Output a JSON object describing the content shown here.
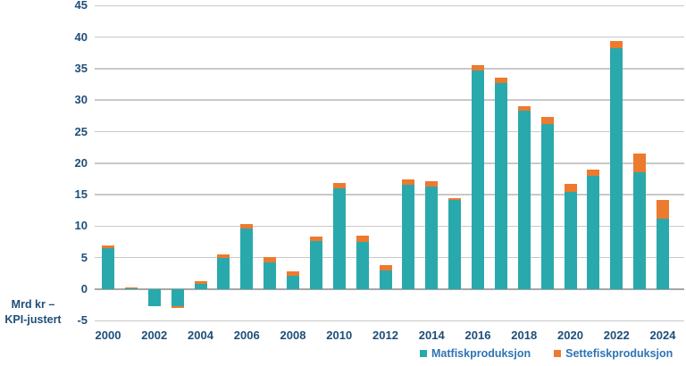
{
  "y_axis": {
    "title_line1": "Mrd kr –",
    "title_line2": "KPI-justert",
    "ticks": [
      45,
      40,
      35,
      30,
      25,
      20,
      15,
      10,
      5,
      0,
      -5
    ]
  },
  "x_axis": {
    "tick_labels": [
      "2000",
      "2002",
      "2004",
      "2006",
      "2008",
      "2010",
      "2012",
      "2014",
      "2016",
      "2018",
      "2020",
      "2022",
      "2024"
    ]
  },
  "legend": {
    "items": [
      {
        "label": "Matfiskproduksjon",
        "color": "#29A9AC"
      },
      {
        "label": "Settefiskproduksjon",
        "color": "#EC7A2F"
      }
    ]
  },
  "colors": {
    "teal": "#29A9AC",
    "orange": "#EC7A2F",
    "axis_text": "#1F4E79",
    "legend_text": "#2E74B5",
    "gridline": "#C9C9C9",
    "zero_line": "#A6A6A6",
    "background": "#FFFFFF"
  },
  "chart_data": {
    "type": "bar",
    "stacked": true,
    "title": "",
    "xlabel": "",
    "ylabel": "Mrd kr – KPI-justert",
    "ylim": [
      -5,
      45
    ],
    "y_tick_step": 5,
    "grid": true,
    "legend_position": "bottom",
    "categories": [
      2000,
      2001,
      2002,
      2003,
      2004,
      2005,
      2006,
      2007,
      2008,
      2009,
      2010,
      2011,
      2012,
      2013,
      2014,
      2015,
      2016,
      2017,
      2018,
      2019,
      2020,
      2021,
      2022,
      2023,
      2024
    ],
    "series": [
      {
        "name": "Matfiskproduksjon",
        "color": "#29A9AC",
        "values": [
          6.5,
          0.2,
          -2.7,
          -2.7,
          0.9,
          5.0,
          9.6,
          4.3,
          2.1,
          7.7,
          16.0,
          7.5,
          3.0,
          16.6,
          16.3,
          14.1,
          34.7,
          32.7,
          28.3,
          26.2,
          15.4,
          18.0,
          38.3,
          18.6,
          11.2
        ]
      },
      {
        "name": "Settefiskproduksjon",
        "color": "#EC7A2F",
        "values": [
          0.4,
          0.15,
          0.0,
          -0.3,
          0.4,
          0.5,
          0.8,
          0.8,
          0.8,
          0.7,
          0.8,
          1.0,
          0.8,
          0.8,
          0.8,
          0.4,
          0.8,
          0.8,
          0.7,
          1.1,
          1.3,
          1.0,
          1.1,
          2.9,
          2.9
        ]
      }
    ]
  }
}
